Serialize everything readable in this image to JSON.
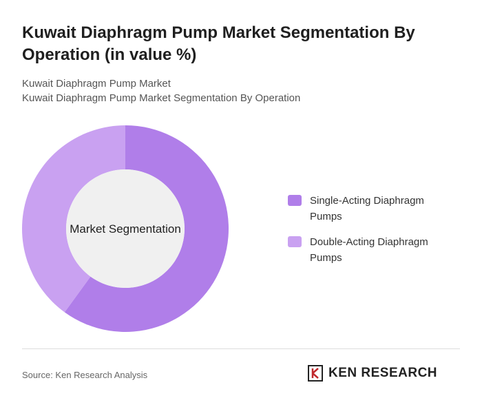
{
  "chart_data": {
    "type": "donut",
    "title": "Kuwait Diaphragm Pump Market Segmentation By Operation (in value %)",
    "subtitle": [
      "Kuwait Diaphragm Pump Market",
      "Kuwait Diaphragm Pump Market Segmentation By Operation"
    ],
    "center_label": "Market Segmentation",
    "series": [
      {
        "name": "Single-Acting Diaphragm Pumps",
        "color": "#b07ee9",
        "values": [
          60
        ]
      },
      {
        "name": "Double-Acting Diaphragm Pumps",
        "color": "#c9a1f1",
        "values": [
          40
        ]
      }
    ],
    "legend": "right",
    "source": "Source: Ken Research Analysis",
    "brand": "KEN RESEARCH"
  }
}
